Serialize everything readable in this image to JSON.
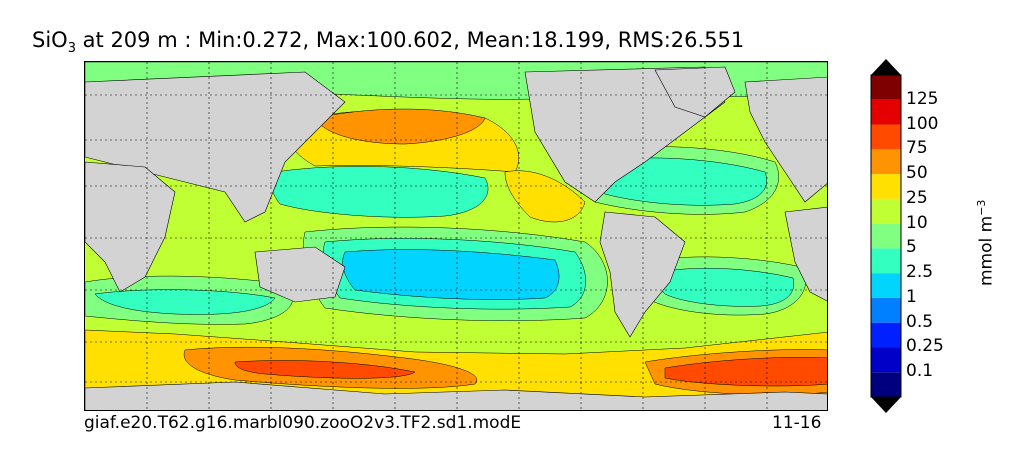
{
  "title": {
    "variable": "SiO",
    "subscript": "3",
    "rest": " at 209 m : Min:0.272, Max:100.602, Mean:18.199, RMS:26.551"
  },
  "footer": {
    "case_name": "giaf.e20.T62.g16.marbl090.zooO2v3.TF2.sd1.modE",
    "years": "11-16"
  },
  "colorbar": {
    "units_base": "mmol m",
    "units_exp": "−3",
    "levels": [
      "0.1",
      "0.25",
      "0.5",
      "1",
      "2.5",
      "5",
      "10",
      "25",
      "50",
      "75",
      "100",
      "125"
    ],
    "colors": [
      "#00007f",
      "#0000c8",
      "#0020ff",
      "#0080ff",
      "#00d4ff",
      "#33ffc0",
      "#80ff80",
      "#c0ff33",
      "#ffe000",
      "#ff9400",
      "#ff4a00",
      "#e40000",
      "#7f0000"
    ],
    "extend": "both"
  },
  "map": {
    "projection": "global cylindrical",
    "land_color": "#d3d3d3",
    "missing_color": "#ffffff",
    "grid": true,
    "contour_lines": true
  }
}
